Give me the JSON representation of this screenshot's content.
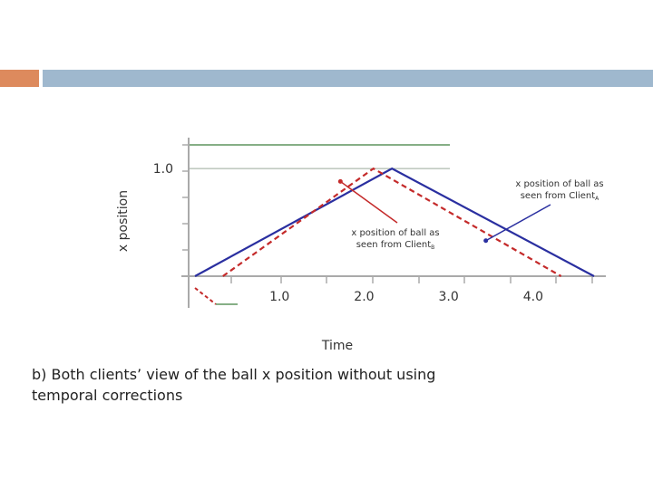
{
  "header": {
    "accent_color": "#dd8a5d",
    "band_color": "#9fb8ce"
  },
  "caption": "b) Both clients’ view of the ball x position without using temporal corrections",
  "chart_data": {
    "type": "line",
    "xlabel": "Time",
    "ylabel": "x position",
    "x_tick_labels": [
      {
        "value": 1.0,
        "label": "1.0"
      },
      {
        "value": 2.0,
        "label": "2.0"
      },
      {
        "value": 3.0,
        "label": "3.0"
      },
      {
        "value": 4.0,
        "label": "4.0"
      }
    ],
    "y_tick_labels": [
      {
        "value": 1.0,
        "label": "1.0"
      }
    ],
    "xlim": [
      0,
      4.72
    ],
    "ylim": [
      0,
      1.22
    ],
    "series": [
      {
        "key": "clientA",
        "color": "#2a2fa0",
        "dash": "solid",
        "x": [
          0,
          2.33,
          4.72
        ],
        "y": [
          0,
          1.0,
          0
        ]
      },
      {
        "key": "clientB",
        "color": "#c42a2a",
        "dash": "dashed",
        "x": [
          0.33,
          2.11,
          4.33
        ],
        "y": [
          0,
          1.0,
          0
        ]
      }
    ],
    "reference_lines": [
      {
        "y": 1.0,
        "color": "#9aaa9a"
      },
      {
        "y": 1.22,
        "color": "#3f7f3f"
      }
    ],
    "annotations": [
      {
        "key": "clientA",
        "text_line1": "x position of ball as",
        "text_line2": "seen from Client",
        "subscript": "A",
        "color": "#2a2fa0",
        "point": {
          "x": 3.44,
          "y": 0.33
        }
      },
      {
        "key": "clientB",
        "text_line1": "x position of ball as",
        "text_line2": "seen from Client",
        "subscript": "B",
        "color": "#c42a2a",
        "point": {
          "x": 1.72,
          "y": 0.88
        }
      }
    ],
    "legend_marks": [
      {
        "key": "clientB",
        "color": "#c42a2a",
        "dash": "dashed"
      },
      {
        "key": "ref",
        "color": "#3f7f3f",
        "dash": "solid"
      }
    ],
    "grid": false
  }
}
